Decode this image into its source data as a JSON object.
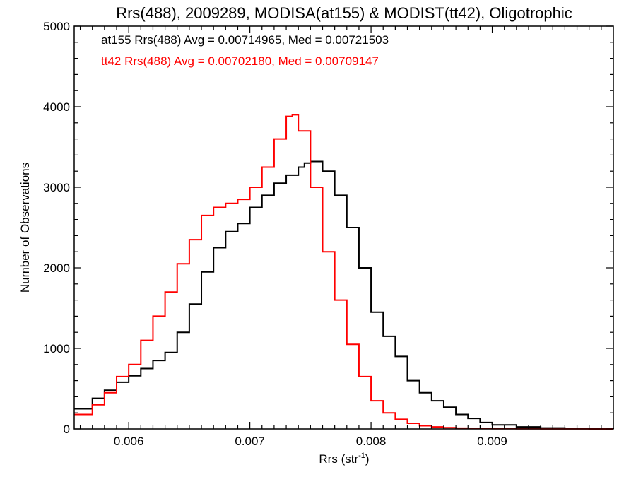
{
  "chart_data": {
    "type": "line",
    "title": "Rrs(488), 2009289, MODISA(at155) & MODIST(tt42), Oligotrophic",
    "xlabel_main": "Rrs (str",
    "xlabel_sup": "-1",
    "xlabel_close": ")",
    "ylabel": "Number of Observations",
    "xlim": [
      0.00555,
      0.01
    ],
    "ylim": [
      0,
      5000
    ],
    "x_ticks": [
      0.006,
      0.007,
      0.008,
      0.009
    ],
    "x_tick_labels": [
      "0.006",
      "0.007",
      "0.008",
      "0.009"
    ],
    "y_ticks": [
      0,
      1000,
      2000,
      3000,
      4000,
      5000
    ],
    "y_tick_labels": [
      "0",
      "1000",
      "2000",
      "3000",
      "4000",
      "5000"
    ],
    "grid": false,
    "annotations": [
      {
        "text": "at155 Rrs(488) Avg = 0.00714965, Med = 0.00721503",
        "color": "#000000"
      },
      {
        "text": "tt42 Rrs(488) Avg = 0.00702180, Med = 0.00709147",
        "color": "#ff0000"
      }
    ],
    "series": [
      {
        "name": "at155",
        "color": "#000000",
        "style": "step",
        "x": [
          0.00555,
          0.0057,
          0.0058,
          0.0059,
          0.006,
          0.0061,
          0.0062,
          0.0063,
          0.0064,
          0.0065,
          0.0066,
          0.0067,
          0.0068,
          0.0069,
          0.007,
          0.0071,
          0.0072,
          0.0073,
          0.0074,
          0.00745,
          0.0075,
          0.0076,
          0.0077,
          0.0078,
          0.0079,
          0.008,
          0.0081,
          0.0082,
          0.0083,
          0.0084,
          0.0085,
          0.0086,
          0.0087,
          0.0088,
          0.0089,
          0.009,
          0.0092,
          0.0094,
          0.0096,
          0.0098,
          0.01
        ],
        "y": [
          250,
          380,
          480,
          580,
          660,
          750,
          850,
          950,
          1200,
          1550,
          1950,
          2250,
          2450,
          2550,
          2750,
          2900,
          3050,
          3150,
          3250,
          3300,
          3320,
          3200,
          2900,
          2500,
          2000,
          1450,
          1150,
          900,
          600,
          450,
          350,
          270,
          180,
          130,
          80,
          50,
          25,
          12,
          6,
          3,
          0
        ]
      },
      {
        "name": "tt42",
        "color": "#ff0000",
        "style": "step",
        "x": [
          0.00555,
          0.0057,
          0.0058,
          0.0059,
          0.006,
          0.0061,
          0.0062,
          0.0063,
          0.0064,
          0.0065,
          0.0066,
          0.0067,
          0.0068,
          0.0069,
          0.007,
          0.0071,
          0.0072,
          0.0073,
          0.00735,
          0.0074,
          0.0075,
          0.0076,
          0.0077,
          0.0078,
          0.0079,
          0.008,
          0.0081,
          0.0082,
          0.0083,
          0.0084,
          0.0085,
          0.0086,
          0.0087,
          0.0088,
          0.0089,
          0.009,
          0.0092,
          0.0094,
          0.0096,
          0.0098,
          0.01
        ],
        "y": [
          180,
          300,
          450,
          650,
          800,
          1100,
          1400,
          1700,
          2050,
          2350,
          2650,
          2750,
          2800,
          2850,
          3000,
          3250,
          3600,
          3880,
          3900,
          3700,
          3000,
          2200,
          1600,
          1050,
          650,
          350,
          200,
          120,
          70,
          40,
          25,
          15,
          10,
          6,
          4,
          3,
          2,
          1,
          1,
          0,
          0
        ]
      }
    ]
  }
}
